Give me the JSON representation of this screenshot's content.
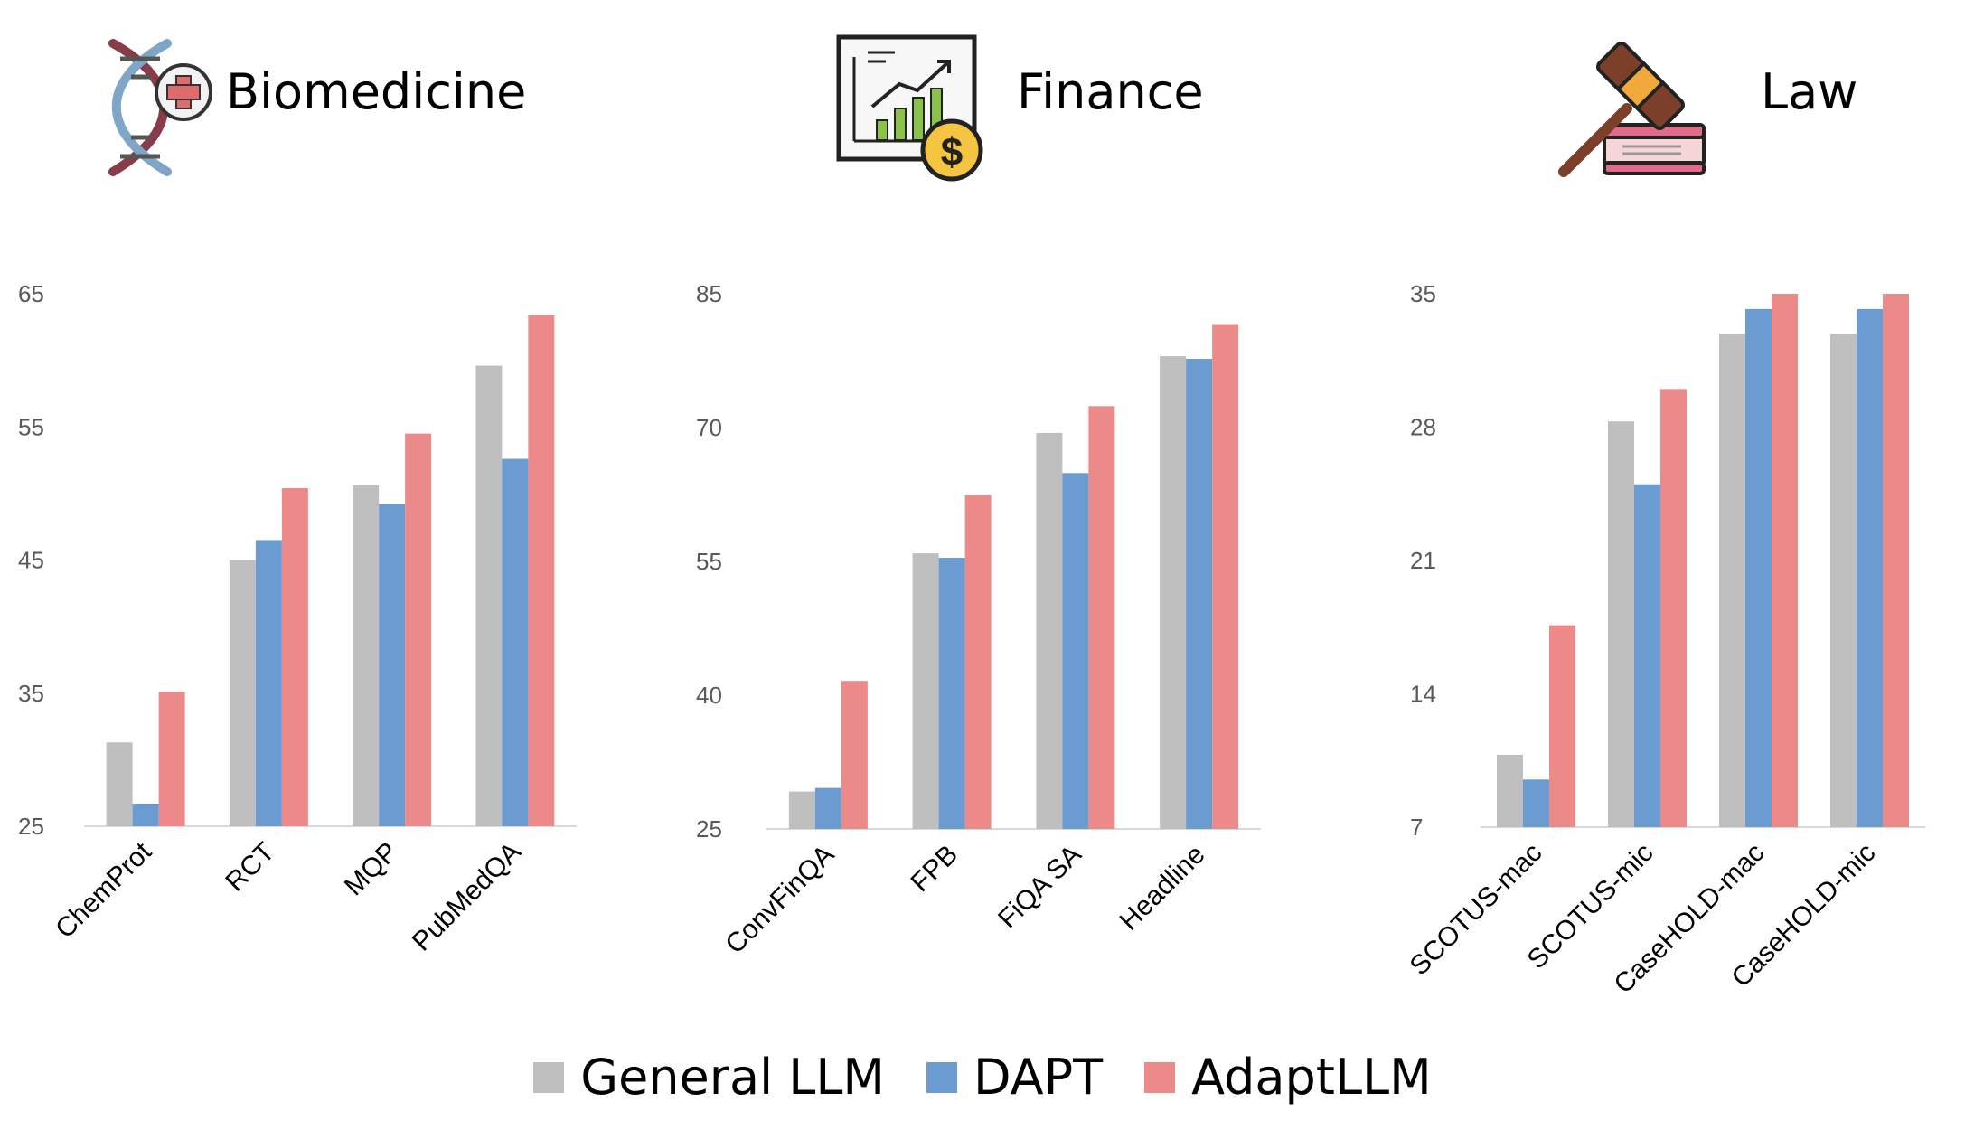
{
  "panels": [
    {
      "id": "biomedicine",
      "title": "Biomedicine",
      "icon": "dna-medical-icon"
    },
    {
      "id": "finance",
      "title": "Finance",
      "icon": "finance-chart-icon"
    },
    {
      "id": "law",
      "title": "Law",
      "icon": "gavel-book-icon"
    }
  ],
  "legend": [
    {
      "name": "General LLM",
      "color": "#bfbfbf"
    },
    {
      "name": "DAPT",
      "color": "#6a9bd1"
    },
    {
      "name": "AdaptLLM",
      "color": "#ec8a8a"
    }
  ],
  "colors": {
    "general": "#bfbfbf",
    "dapt": "#6a9bd1",
    "adapt": "#ec8a8a",
    "tick_text": "#595959",
    "axis": "#d9d9d9"
  },
  "chart_data": [
    {
      "type": "bar",
      "title": "Biomedicine",
      "categories": [
        "ChemProt",
        "RCT",
        "MQP",
        "PubMedQA"
      ],
      "series": [
        {
          "name": "General LLM",
          "values": [
            31.3,
            45.0,
            50.6,
            59.6
          ]
        },
        {
          "name": "DAPT",
          "values": [
            26.7,
            46.5,
            49.2,
            52.6
          ]
        },
        {
          "name": "AdaptLLM",
          "values": [
            35.1,
            50.4,
            54.5,
            63.4
          ]
        }
      ],
      "ylim": [
        25,
        65
      ],
      "yticks": [
        25,
        35,
        45,
        55,
        65
      ],
      "grid": false
    },
    {
      "type": "bar",
      "title": "Finance",
      "categories": [
        "ConvFinQA",
        "FPB",
        "FiQA SA",
        "Headline"
      ],
      "series": [
        {
          "name": "General LLM",
          "values": [
            29.2,
            55.9,
            69.4,
            78.0
          ]
        },
        {
          "name": "DAPT",
          "values": [
            29.6,
            55.4,
            64.9,
            77.7
          ]
        },
        {
          "name": "AdaptLLM",
          "values": [
            41.6,
            62.4,
            72.4,
            81.6
          ]
        }
      ],
      "ylim": [
        25,
        85
      ],
      "yticks": [
        25,
        40,
        55,
        70,
        85
      ],
      "grid": false
    },
    {
      "type": "bar",
      "title": "Law",
      "categories": [
        "SCOTUS-mac",
        "SCOTUS-mic",
        "CaseHOLD-mac",
        "CaseHOLD-mic"
      ],
      "series": [
        {
          "name": "General LLM",
          "values": [
            10.8,
            28.3,
            32.9,
            32.9
          ]
        },
        {
          "name": "DAPT",
          "values": [
            9.5,
            25.0,
            34.2,
            34.2
          ]
        },
        {
          "name": "AdaptLLM",
          "values": [
            17.6,
            30.0,
            35.0,
            35.0
          ]
        }
      ],
      "ylim": [
        7,
        35
      ],
      "yticks": [
        7,
        14,
        21,
        28,
        35
      ],
      "grid": false
    }
  ]
}
